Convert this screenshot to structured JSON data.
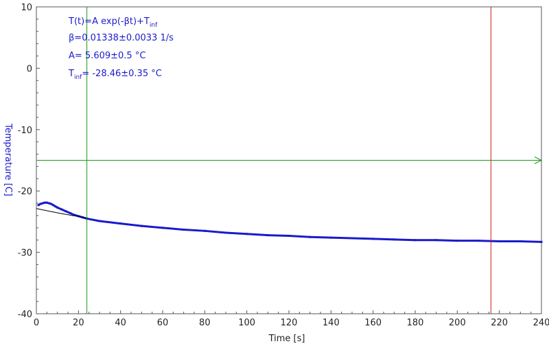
{
  "chart_data": {
    "type": "scatter",
    "xlabel": "Time [s]",
    "ylabel": "Temperature [C]",
    "xlim": [
      0,
      240
    ],
    "ylim": [
      -40,
      10
    ],
    "x_ticks": [
      0,
      20,
      40,
      60,
      80,
      100,
      120,
      140,
      160,
      180,
      200,
      220,
      240
    ],
    "y_ticks": [
      10,
      0,
      -10,
      -20,
      -30,
      -40
    ],
    "grid": false,
    "legend": "none",
    "annotation": {
      "line1": "T(t)=A exp(-βt)+T",
      "line1_sub": "inf",
      "line2": "β=0.01338±0.0033 1/s",
      "line3": "A= 5.609±0.5 °C",
      "line4_main": "T",
      "line4_sub": "inf",
      "line4_rest": "= -28.46±0.35 °C"
    },
    "fit": {
      "A": 5.609,
      "beta": 0.01338,
      "T_inf": -28.46,
      "x_range": [
        0,
        24
      ]
    },
    "cursors": {
      "vertical_green_x": 24,
      "vertical_red_x": 216,
      "horizontal_green_y": -15
    },
    "series": [
      {
        "color": "#1a1acc",
        "x": [
          1,
          2,
          3,
          4,
          5,
          6,
          7,
          8,
          9,
          10,
          12,
          14,
          16,
          18,
          20,
          22,
          24,
          30,
          40,
          50,
          60,
          70,
          80,
          90,
          100,
          110,
          120,
          130,
          140,
          150,
          160,
          170,
          180,
          190,
          200,
          210,
          220,
          230,
          240
        ],
        "y": [
          -22.3,
          -22.1,
          -22.0,
          -21.9,
          -21.9,
          -22.0,
          -22.1,
          -22.3,
          -22.5,
          -22.7,
          -23.0,
          -23.3,
          -23.6,
          -23.9,
          -24.1,
          -24.3,
          -24.5,
          -24.9,
          -25.3,
          -25.7,
          -26.0,
          -26.3,
          -26.5,
          -26.8,
          -27.0,
          -27.2,
          -27.3,
          -27.5,
          -27.6,
          -27.7,
          -27.8,
          -27.9,
          -28.0,
          -28.0,
          -28.1,
          -28.1,
          -28.2,
          -28.2,
          -28.3
        ]
      }
    ],
    "colors": {
      "data": "#1a1acc",
      "fit": "#000000",
      "cursor_green": "#1a9a1a",
      "cursor_red": "#cc1a1a",
      "axis": "#555555"
    }
  }
}
